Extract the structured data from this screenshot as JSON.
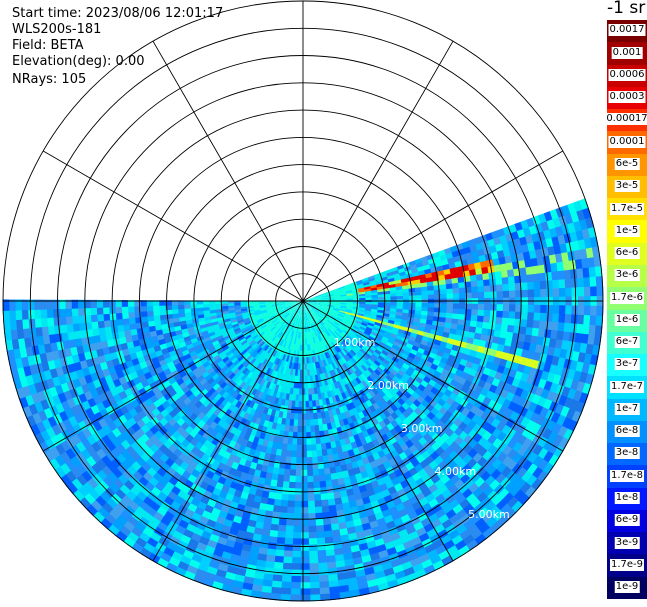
{
  "header": {
    "start_time": "Start time: 2023/08/06 12:01:17",
    "instrument": "WLS200s-181",
    "field": "Field: BETA",
    "elevation": "Elevation(deg): 0.00",
    "nrays": "NRays: 105"
  },
  "colorbar": {
    "unit": "-1 sr",
    "labels": [
      "0.0017",
      "0.001",
      "0.0006",
      "0.0003",
      "0.00017",
      "0.0001",
      "6e-5",
      "3e-5",
      "1.7e-5",
      "1e-5",
      "6e-6",
      "3e-6",
      "1.7e-6",
      "1e-6",
      "6e-7",
      "3e-7",
      "1.7e-7",
      "1e-7",
      "6e-8",
      "3e-8",
      "1.7e-8",
      "1e-8",
      "6e-9",
      "3e-9",
      "1.7e-9",
      "1e-9"
    ],
    "colors": [
      "#7a0000",
      "#a00000",
      "#c80000",
      "#e80000",
      "#ff3000",
      "#ff6a00",
      "#ff9600",
      "#ffbe00",
      "#ffe000",
      "#ffff00",
      "#e0ff20",
      "#b8ff48",
      "#90ff70",
      "#68ffa0",
      "#40ffd0",
      "#18ffff",
      "#00e0ff",
      "#00b8ff",
      "#0090ff",
      "#0068ff",
      "#0040ff",
      "#0018ff",
      "#0000e0",
      "#0000b0",
      "#000088",
      "#000060"
    ]
  },
  "chart_data": {
    "type": "heatmap",
    "projection": "polar PPI",
    "field": "BETA",
    "scale": "log",
    "value_range": [
      1e-09,
      0.0017
    ],
    "range_rings_km": [
      0.5,
      1,
      1.5,
      2,
      2.5,
      3,
      3.5,
      4,
      4.5,
      5,
      5.5
    ],
    "range_labels": [
      "1.00km",
      "2.00km",
      "3.00km",
      "4.00km",
      "5.00km"
    ],
    "range_label_values_km": [
      1,
      2,
      3,
      4,
      5
    ],
    "spokes_deg": [
      0,
      30,
      60,
      90,
      120,
      150,
      180,
      210,
      240,
      270,
      300,
      330
    ],
    "scan_sector_deg": [
      -20,
      180
    ],
    "nrays": 105,
    "features": [
      {
        "description": "strong backscatter returns",
        "azimuth_deg": -10,
        "range_km": [
          1.0,
          3.5
        ],
        "level": "1e-4 to 1e-3"
      },
      {
        "description": "linear enhanced band",
        "azimuth_deg": 15,
        "range_km": [
          0.7,
          4.5
        ],
        "level": "1e-6"
      },
      {
        "description": "near-range high values",
        "azimuth_deg": [
          0,
          180
        ],
        "range_km": [
          0,
          1.0
        ],
        "level": "1e-7 to 3e-7"
      }
    ]
  }
}
